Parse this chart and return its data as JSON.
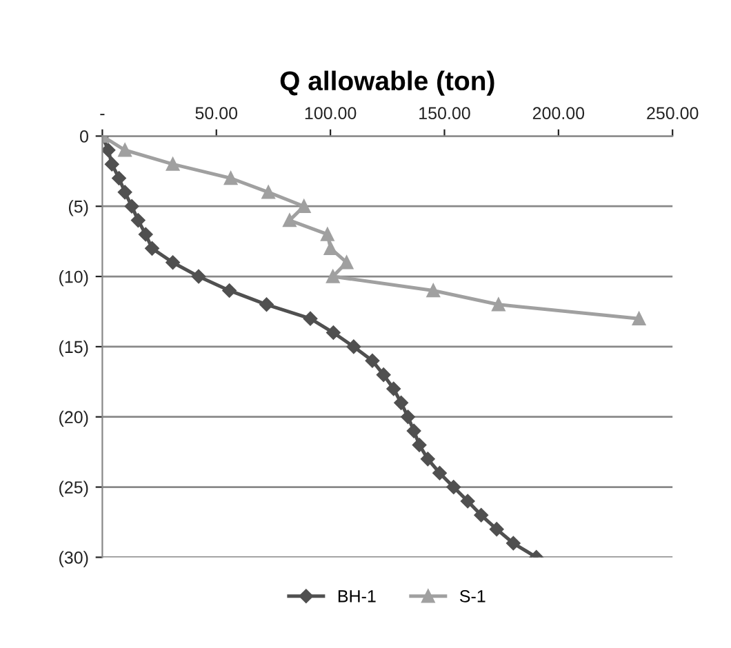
{
  "chart_data": {
    "type": "line",
    "title": "Q allowable (ton)",
    "series": [
      {
        "name": "BH-1",
        "color": "#505050",
        "marker": "diamond",
        "x": [
          0,
          2.6,
          4.2,
          7.3,
          9.9,
          12.9,
          15.7,
          19.0,
          21.8,
          30.9,
          42.2,
          55.7,
          72.0,
          91.2,
          101.3,
          110.2,
          118.4,
          123.3,
          127.7,
          131.0,
          134.0,
          136.6,
          139.0,
          142.7,
          147.9,
          154.0,
          160.2,
          166.1,
          172.9,
          180.2,
          190.3
        ],
        "values": [
          0,
          -1,
          -2,
          -3,
          -4,
          -5,
          -6,
          -7,
          -8,
          -9,
          -10,
          -11,
          -12,
          -13,
          -14,
          -15,
          -16,
          -17,
          -18,
          -19,
          -20,
          -21,
          -22,
          -23,
          -24,
          -25,
          -26,
          -27,
          -28,
          -29,
          -30
        ]
      },
      {
        "name": "S-1",
        "color": "#a0a0a0",
        "marker": "triangle",
        "x": [
          0,
          9.9,
          30.9,
          56.3,
          72.8,
          88.4,
          82.1,
          98.7,
          100.1,
          107.1,
          101.1,
          145.1,
          173.7,
          235.3
        ],
        "values": [
          0,
          -1,
          -2,
          -3,
          -4,
          -5,
          -6,
          -7,
          -8,
          -9,
          -10,
          -11,
          -12,
          -13
        ]
      }
    ],
    "xlim": [
      0,
      250
    ],
    "xticks": [
      {
        "value": 0,
        "label": "-"
      },
      {
        "value": 50,
        "label": "50.00"
      },
      {
        "value": 100,
        "label": "100.00"
      },
      {
        "value": 150,
        "label": "150.00"
      },
      {
        "value": 200,
        "label": "200.00"
      },
      {
        "value": 250,
        "label": "250.00"
      }
    ],
    "ylim": [
      -30,
      0
    ],
    "yticks": [
      {
        "value": 0,
        "label": "0"
      },
      {
        "value": -5,
        "label": "(5)"
      },
      {
        "value": -10,
        "label": "(10)"
      },
      {
        "value": -15,
        "label": "(15)"
      },
      {
        "value": -20,
        "label": "(20)"
      },
      {
        "value": -25,
        "label": "(25)"
      },
      {
        "value": -30,
        "label": "(30)"
      }
    ],
    "grid": "y",
    "legend": "bottom"
  }
}
